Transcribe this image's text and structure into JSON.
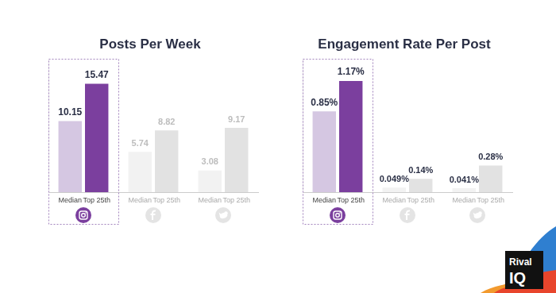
{
  "chart_data": [
    {
      "type": "bar",
      "title": "Posts Per Week",
      "categories": [
        null,
        null,
        null
      ],
      "series": [
        {
          "name": "Median",
          "colors": [
            "#d5c7e2",
            "#f2f2f2",
            "#f2f2f2"
          ],
          "values": [
            10.15,
            5.74,
            3.08
          ]
        },
        {
          "name": "Top 25th",
          "colors": [
            "#7b3f9e",
            "#e2e2e2",
            "#e2e2e2"
          ],
          "values": [
            15.47,
            8.82,
            9.17
          ]
        }
      ],
      "ylim": [
        0,
        19
      ],
      "grid": false,
      "tick_labels": false,
      "data_labels": true
    },
    {
      "type": "bar",
      "title": "Engagement Rate Per Post",
      "categories": [
        null,
        null,
        null
      ],
      "series": [
        {
          "name": "Median",
          "colors": [
            "#d5c7e2",
            "#f2f2f2",
            "#f2f2f2"
          ],
          "values": [
            0.85,
            0.049,
            0.041
          ],
          "value_labels": [
            "0.85%",
            "0.049%",
            "0.041%"
          ]
        },
        {
          "name": "Top 25th",
          "colors": [
            "#7b3f9e",
            "#e2e2e2",
            "#e2e2e2"
          ],
          "values": [
            1.17,
            0.14,
            0.28
          ],
          "value_labels": [
            "1.17%",
            "0.14%",
            "0.28%"
          ]
        }
      ],
      "ylim": [
        0,
        1.4
      ],
      "grid": false,
      "tick_labels": false,
      "data_labels": true
    }
  ],
  "logo": [
    "Rival",
    "IQ"
  ]
}
